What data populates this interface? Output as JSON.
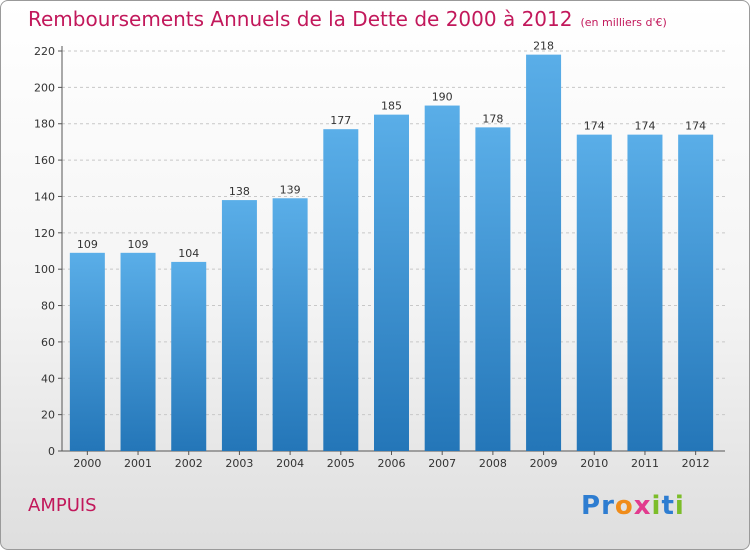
{
  "title": "Remboursements Annuels de la Dette de 2000 à 2012",
  "unit_note": "(en milliers d'€)",
  "commune": "AMPUIS",
  "logo": {
    "text": "Proxiti",
    "letters": [
      {
        "ch": "P",
        "color": "#2e7dd1"
      },
      {
        "ch": "r",
        "color": "#2e7dd1"
      },
      {
        "ch": "o",
        "color": "#f08c1a"
      },
      {
        "ch": "x",
        "color": "#e23b8e"
      },
      {
        "ch": "i",
        "color": "#7cbd2a"
      },
      {
        "ch": "t",
        "color": "#2e7dd1"
      },
      {
        "ch": "i",
        "color": "#7cbd2a"
      }
    ]
  },
  "colors": {
    "accent": "#c2185b",
    "bar_top": "#5aaee8",
    "bar_bottom": "#2476b8"
  },
  "chart_data": {
    "type": "bar",
    "categories": [
      "2000",
      "2001",
      "2002",
      "2003",
      "2004",
      "2005",
      "2006",
      "2007",
      "2008",
      "2009",
      "2010",
      "2011",
      "2012"
    ],
    "values": [
      109,
      109,
      104,
      138,
      139,
      177,
      185,
      190,
      178,
      218,
      174,
      174,
      174
    ],
    "ylim": [
      0,
      220
    ],
    "yticks": [
      0,
      20,
      40,
      60,
      80,
      100,
      120,
      140,
      160,
      180,
      200,
      220
    ],
    "grid": true,
    "data_labels": true,
    "legend": "none"
  }
}
